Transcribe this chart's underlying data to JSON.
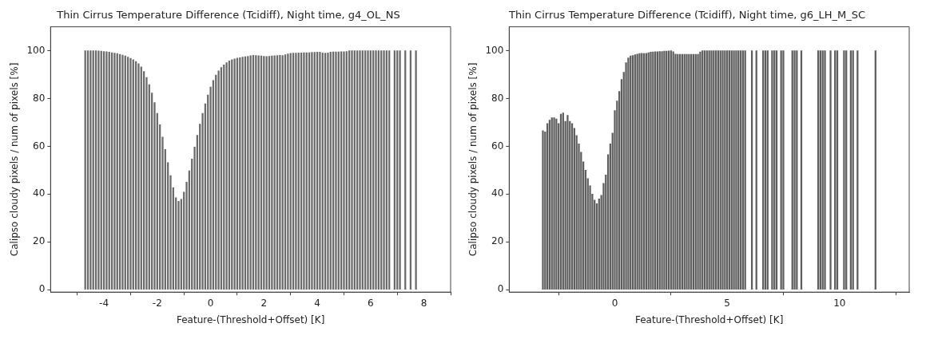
{
  "chart_data": [
    {
      "type": "bar",
      "title": "Thin Cirrus Temperature Difference (Tcidiff), Night time, g4_OL_NS",
      "xlabel": "Feature-(Threshold+Offset) [K]",
      "ylabel": "Calipso cloudy pixels / num of pixels [%]",
      "color": "#6a6a6a",
      "x": [
        -4.7,
        -4.6,
        -4.5,
        -4.4,
        -4.3,
        -4.2,
        -4.1,
        -4.0,
        -3.9,
        -3.8,
        -3.7,
        -3.6,
        -3.5,
        -3.4,
        -3.3,
        -3.2,
        -3.1,
        -3.0,
        -2.9,
        -2.8,
        -2.7,
        -2.6,
        -2.5,
        -2.4,
        -2.3,
        -2.2,
        -2.1,
        -2.0,
        -1.9,
        -1.8,
        -1.7,
        -1.6,
        -1.5,
        -1.4,
        -1.3,
        -1.2,
        -1.1,
        -1.0,
        -0.9,
        -0.8,
        -0.7,
        -0.6,
        -0.5,
        -0.4,
        -0.3,
        -0.2,
        -0.1,
        0.0,
        0.1,
        0.2,
        0.3,
        0.4,
        0.5,
        0.6,
        0.7,
        0.8,
        0.9,
        1.0,
        1.1,
        1.2,
        1.3,
        1.4,
        1.5,
        1.6,
        1.7,
        1.8,
        1.9,
        2.0,
        2.1,
        2.2,
        2.3,
        2.4,
        2.5,
        2.6,
        2.7,
        2.8,
        2.9,
        3.0,
        3.1,
        3.2,
        3.3,
        3.4,
        3.5,
        3.6,
        3.7,
        3.8,
        3.9,
        4.0,
        4.1,
        4.2,
        4.3,
        4.4,
        4.5,
        4.6,
        4.7,
        4.8,
        4.9,
        5.0,
        5.1,
        5.2,
        5.3,
        5.4,
        5.5,
        5.6,
        5.7,
        5.8,
        5.9,
        6.0,
        6.1,
        6.2,
        6.3,
        6.4,
        6.5,
        6.6,
        6.7,
        6.9,
        7.0,
        7.1,
        7.3,
        7.5,
        7.7
      ],
      "values": [
        100,
        100,
        100,
        100,
        100,
        99.9,
        99.8,
        99.7,
        99.6,
        99.4,
        99.2,
        99.0,
        98.8,
        98.5,
        98.2,
        97.8,
        97.3,
        96.8,
        96.2,
        95.5,
        94.6,
        93.2,
        91.3,
        88.8,
        85.8,
        82.3,
        78.3,
        73.8,
        69,
        63.9,
        58.7,
        53.2,
        47.8,
        42.7,
        38.5,
        37,
        37.8,
        40.8,
        45,
        49.8,
        54.7,
        59.7,
        64.6,
        69.3,
        73.8,
        77.8,
        81.5,
        84.8,
        87.6,
        89.8,
        91.6,
        93,
        94.1,
        95,
        95.7,
        96.2,
        96.6,
        96.9,
        97.1,
        97.3,
        97.5,
        97.7,
        97.9,
        98.1,
        98.0,
        97.9,
        97.8,
        97.7,
        97.6,
        97.7,
        97.8,
        97.9,
        98.0,
        98.1,
        98.0,
        98.3,
        98.7,
        98.9,
        99.0,
        99.0,
        99.1,
        99.1,
        99.2,
        99.2,
        99.2,
        99.3,
        99.3,
        99.4,
        99.4,
        99.1,
        99.0,
        99.1,
        99.4,
        99.5,
        99.5,
        99.5,
        99.6,
        99.6,
        99.7,
        100,
        100,
        100,
        100,
        100,
        100,
        100,
        100,
        100,
        100,
        100,
        100,
        100,
        100,
        100,
        100,
        100,
        100,
        100,
        100,
        100,
        100
      ],
      "xlim": [
        -6,
        9
      ],
      "xticks": [
        -4,
        -2,
        0,
        2,
        4,
        6,
        8
      ],
      "ylim": [
        -1,
        110
      ],
      "yticks": [
        0,
        20,
        40,
        60,
        80,
        100
      ]
    },
    {
      "type": "bar",
      "title": "Thin Cirrus Temperature Difference (Tcidiff), Night time, g6_LH_M_SC",
      "xlabel": "Feature-(Threshold+Offset) [K]",
      "ylabel": "Calipso cloudy pixels / num of pixels [%]",
      "color": "#5e5e5e",
      "x": [
        -3.2,
        -3.1,
        -3.0,
        -2.9,
        -2.8,
        -2.7,
        -2.6,
        -2.5,
        -2.4,
        -2.3,
        -2.2,
        -2.1,
        -2.0,
        -1.9,
        -1.8,
        -1.7,
        -1.6,
        -1.5,
        -1.4,
        -1.3,
        -1.2,
        -1.1,
        -1.0,
        -0.9,
        -0.8,
        -0.7,
        -0.6,
        -0.5,
        -0.4,
        -0.3,
        -0.2,
        -0.1,
        0.0,
        0.1,
        0.2,
        0.3,
        0.4,
        0.5,
        0.6,
        0.7,
        0.8,
        0.9,
        1.0,
        1.1,
        1.2,
        1.3,
        1.4,
        1.5,
        1.6,
        1.7,
        1.8,
        1.9,
        2.0,
        2.1,
        2.2,
        2.3,
        2.4,
        2.5,
        2.6,
        2.7,
        2.8,
        2.9,
        3.0,
        3.1,
        3.2,
        3.3,
        3.4,
        3.5,
        3.6,
        3.7,
        3.8,
        3.9,
        4.0,
        4.1,
        4.2,
        4.3,
        4.4,
        4.5,
        4.6,
        4.7,
        4.8,
        4.9,
        5.0,
        5.1,
        5.2,
        5.3,
        5.4,
        5.5,
        5.6,
        5.7,
        5.8,
        6.1,
        6.3,
        6.6,
        6.7,
        6.8,
        7.0,
        7.1,
        7.2,
        7.4,
        7.5,
        7.9,
        8.0,
        8.1,
        8.3,
        9.05,
        9.15,
        9.25,
        9.35,
        9.6,
        9.8,
        9.9,
        10.2,
        10.3,
        10.5,
        10.6,
        10.8,
        11.6
      ],
      "values": [
        66.5,
        66,
        69.5,
        71,
        72,
        72,
        71.5,
        69.5,
        73.5,
        74,
        70.5,
        73,
        70.5,
        69.5,
        67.5,
        64.5,
        61,
        57.5,
        53.5,
        50,
        46.5,
        43.5,
        40,
        37.5,
        36,
        38,
        39.5,
        44.5,
        48,
        56.5,
        61,
        65.5,
        75,
        79,
        83,
        88,
        91,
        95,
        97,
        97.8,
        98,
        98.3,
        98.6,
        98.8,
        98.9,
        98.8,
        98.9,
        99.2,
        99.4,
        99.5,
        99.6,
        99.6,
        99.7,
        99.7,
        99.8,
        99.8,
        99.9,
        100,
        99.6,
        98.6,
        98.5,
        98.5,
        98.5,
        98.5,
        98.5,
        98.5,
        98.5,
        98.5,
        98.5,
        98.5,
        99.5,
        100,
        100,
        100,
        100,
        100,
        100,
        100,
        100,
        100,
        100,
        100,
        100,
        100,
        100,
        100,
        100,
        100,
        100,
        100,
        100,
        100,
        100,
        100,
        100,
        100,
        100,
        100,
        100,
        100,
        100,
        100,
        100,
        100,
        100,
        100,
        100,
        100,
        100,
        100,
        100,
        100,
        100,
        100,
        100,
        100,
        100,
        100
      ],
      "xlim": [
        -4.7,
        13.1
      ],
      "xticks": [
        0,
        5,
        10
      ],
      "ylim": [
        -1,
        110
      ],
      "yticks": [
        0,
        20,
        40,
        60,
        80,
        100
      ]
    }
  ]
}
